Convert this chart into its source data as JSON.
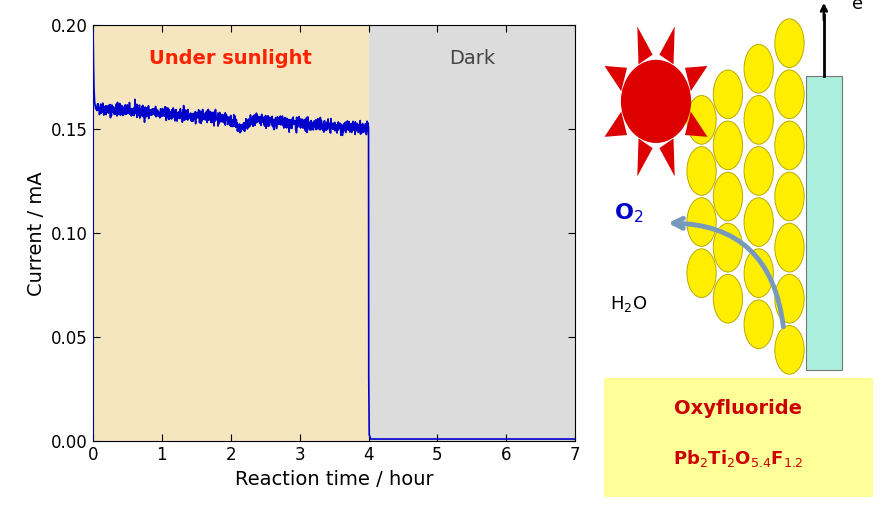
{
  "xlabel": "Reaction time / hour",
  "ylabel": "Current / mA",
  "xlim": [
    0,
    7
  ],
  "ylim": [
    0,
    0.2
  ],
  "yticks": [
    0.0,
    0.05,
    0.1,
    0.15,
    0.2
  ],
  "xticks": [
    0,
    1,
    2,
    3,
    4,
    5,
    6,
    7
  ],
  "sunlight_region": [
    0,
    4
  ],
  "dark_region": [
    4,
    7
  ],
  "sunlight_color": "#F5E6C0",
  "dark_color": "#DCDCDC",
  "line_color": "#0000CC",
  "sunlight_label": "Under sunlight",
  "dark_label": "Dark",
  "sunlight_label_color": "#FF2200",
  "dark_label_color": "#444444",
  "label_fontsize": 14,
  "axis_fontsize": 14,
  "tick_fontsize": 12,
  "noise_seed": 42
}
